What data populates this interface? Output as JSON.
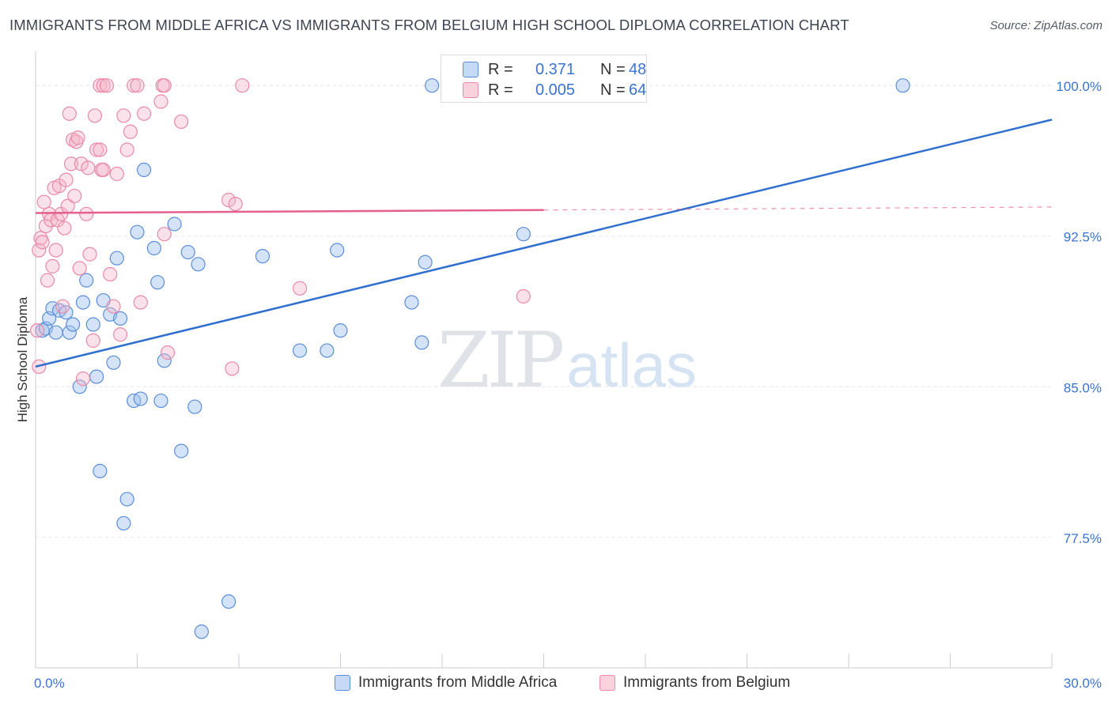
{
  "header": {
    "title": "IMMIGRANTS FROM MIDDLE AFRICA VS IMMIGRANTS FROM BELGIUM HIGH SCHOOL DIPLOMA CORRELATION CHART",
    "source": "Source: ZipAtlas.com"
  },
  "legend_top": {
    "rows": [
      {
        "r_label": "R =",
        "r_value": "0.371",
        "n_label": "N =",
        "n_value": "48"
      },
      {
        "r_label": "R =",
        "r_value": "0.005",
        "n_label": "N =",
        "n_value": "64"
      }
    ]
  },
  "watermark": {
    "zip": "ZIP",
    "atlas": "atlas"
  },
  "colors": {
    "series_a": "#5b8ed8",
    "series_a_fill": "rgba(160,192,240,0.45)",
    "series_b": "#e88aa8",
    "series_b_fill": "rgba(246,180,200,0.40)",
    "trend_a": "#2f6fcf",
    "trend_b": "#e5608e",
    "tick_text": "#3a74d0",
    "grid": "#e3e6ea"
  },
  "chart_data": {
    "type": "scatter",
    "title": "IMMIGRANTS FROM MIDDLE AFRICA VS IMMIGRANTS FROM BELGIUM HIGH SCHOOL DIPLOMA CORRELATION CHART",
    "xlabel": "",
    "ylabel": "High School Diploma",
    "xlim": [
      0,
      30
    ],
    "ylim": [
      71.0,
      101.7
    ],
    "x_tick_labels": [
      "0.0%",
      "30.0%"
    ],
    "y_ticks": [
      77.5,
      85.0,
      92.5,
      100.0
    ],
    "y_tick_labels": [
      "77.5%",
      "85.0%",
      "92.5%",
      "100.0%"
    ],
    "grid": true,
    "legend_placement": "bottom-center",
    "series": [
      {
        "name": "Immigrants from Middle Africa",
        "R": 0.371,
        "N": 48,
        "trend": {
          "x": [
            0,
            30
          ],
          "y": [
            86.0,
            98.3
          ],
          "dashed_from_x": null
        },
        "points": [
          [
            0.2,
            87.8
          ],
          [
            0.3,
            87.9
          ],
          [
            0.4,
            88.4
          ],
          [
            0.5,
            88.9
          ],
          [
            0.6,
            87.7
          ],
          [
            0.7,
            88.8
          ],
          [
            0.9,
            88.7
          ],
          [
            1.0,
            87.7
          ],
          [
            1.1,
            88.1
          ],
          [
            1.3,
            85.0
          ],
          [
            1.4,
            89.2
          ],
          [
            1.5,
            90.3
          ],
          [
            1.7,
            88.1
          ],
          [
            1.8,
            85.5
          ],
          [
            1.9,
            80.8
          ],
          [
            2.0,
            89.3
          ],
          [
            2.2,
            88.6
          ],
          [
            2.3,
            86.2
          ],
          [
            2.4,
            91.4
          ],
          [
            2.5,
            88.4
          ],
          [
            2.6,
            78.2
          ],
          [
            2.7,
            79.4
          ],
          [
            2.9,
            84.3
          ],
          [
            3.0,
            92.7
          ],
          [
            3.1,
            84.4
          ],
          [
            3.2,
            95.8
          ],
          [
            3.5,
            91.9
          ],
          [
            3.6,
            90.2
          ],
          [
            3.7,
            84.3
          ],
          [
            3.8,
            86.3
          ],
          [
            4.1,
            93.1
          ],
          [
            4.3,
            81.8
          ],
          [
            4.5,
            91.7
          ],
          [
            4.7,
            84.0
          ],
          [
            4.8,
            91.1
          ],
          [
            4.9,
            72.8
          ],
          [
            5.7,
            74.3
          ],
          [
            6.7,
            91.5
          ],
          [
            7.8,
            86.8
          ],
          [
            8.6,
            86.8
          ],
          [
            8.9,
            91.8
          ],
          [
            9.0,
            87.8
          ],
          [
            11.1,
            89.2
          ],
          [
            11.4,
            87.2
          ],
          [
            11.5,
            91.2
          ],
          [
            11.7,
            100.0
          ],
          [
            14.4,
            92.6
          ],
          [
            25.6,
            100.0
          ]
        ]
      },
      {
        "name": "Immigrants from Belgium",
        "R": 0.005,
        "N": 64,
        "trend": {
          "x": [
            0,
            30
          ],
          "y": [
            93.65,
            93.95
          ],
          "dashed_from_x": 15.0
        },
        "points": [
          [
            0.05,
            87.8
          ],
          [
            0.1,
            91.8
          ],
          [
            0.15,
            92.4
          ],
          [
            0.2,
            92.2
          ],
          [
            0.25,
            94.2
          ],
          [
            0.3,
            93.0
          ],
          [
            0.35,
            90.3
          ],
          [
            0.4,
            93.6
          ],
          [
            0.45,
            93.3
          ],
          [
            0.5,
            91.0
          ],
          [
            0.55,
            94.9
          ],
          [
            0.6,
            91.8
          ],
          [
            0.65,
            93.3
          ],
          [
            0.7,
            95.0
          ],
          [
            0.75,
            93.6
          ],
          [
            0.8,
            89.0
          ],
          [
            0.85,
            92.9
          ],
          [
            0.9,
            95.3
          ],
          [
            0.95,
            94.0
          ],
          [
            1.0,
            98.6
          ],
          [
            1.05,
            96.1
          ],
          [
            1.1,
            97.3
          ],
          [
            1.15,
            94.5
          ],
          [
            1.2,
            97.2
          ],
          [
            1.25,
            97.4
          ],
          [
            1.3,
            90.9
          ],
          [
            1.35,
            96.1
          ],
          [
            1.4,
            85.4
          ],
          [
            1.5,
            93.6
          ],
          [
            1.55,
            95.9
          ],
          [
            1.6,
            91.6
          ],
          [
            1.7,
            87.3
          ],
          [
            1.75,
            98.5
          ],
          [
            1.8,
            96.8
          ],
          [
            1.9,
            96.8
          ],
          [
            1.95,
            95.8
          ],
          [
            2.0,
            95.8
          ],
          [
            1.9,
            100.0
          ],
          [
            2.0,
            100.0
          ],
          [
            2.1,
            100.0
          ],
          [
            2.2,
            90.6
          ],
          [
            2.3,
            89.0
          ],
          [
            2.4,
            95.6
          ],
          [
            2.5,
            87.6
          ],
          [
            2.6,
            98.5
          ],
          [
            2.7,
            96.8
          ],
          [
            2.8,
            97.7
          ],
          [
            2.9,
            100.0
          ],
          [
            3.0,
            100.0
          ],
          [
            3.1,
            89.2
          ],
          [
            3.2,
            98.6
          ],
          [
            3.7,
            99.2
          ],
          [
            3.8,
            92.6
          ],
          [
            3.9,
            86.7
          ],
          [
            3.75,
            100.0
          ],
          [
            3.8,
            100.0
          ],
          [
            4.3,
            98.2
          ],
          [
            5.7,
            94.3
          ],
          [
            5.8,
            85.9
          ],
          [
            5.9,
            94.1
          ],
          [
            6.1,
            100.0
          ],
          [
            7.8,
            89.9
          ],
          [
            14.4,
            89.5
          ],
          [
            0.1,
            86.0
          ]
        ]
      }
    ]
  },
  "bottom_legend": [
    {
      "label": "Immigrants from Middle Africa"
    },
    {
      "label": "Immigrants from Belgium"
    }
  ]
}
